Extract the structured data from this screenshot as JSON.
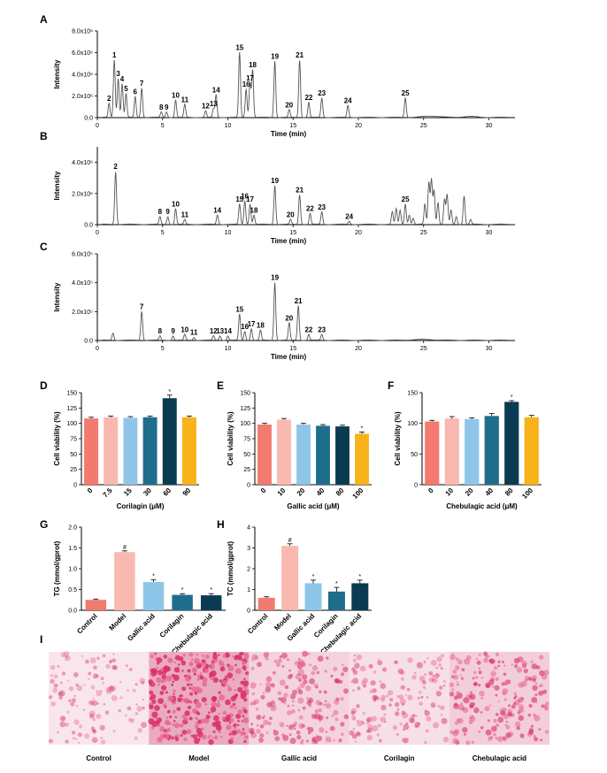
{
  "figure": {
    "panel_letters": [
      "A",
      "B",
      "C",
      "D",
      "E",
      "F",
      "G",
      "H",
      "I"
    ],
    "colors": {
      "salmon": "#F27A6E",
      "pink": "#F9B9B0",
      "lightblue": "#8EC6E9",
      "teal": "#1F6D8C",
      "navy": "#0B3B52",
      "gold": "#F7B319",
      "trace": "#555555"
    },
    "stain": {
      "labels": [
        "Control",
        "Model",
        "Gallic acid",
        "Corilagin",
        "Chebulagic acid"
      ],
      "densities": [
        0.12,
        0.92,
        0.38,
        0.22,
        0.45
      ]
    }
  },
  "chart_data": [
    {
      "id": "A",
      "type": "line",
      "xlabel": "Time (min)",
      "ylabel": "Intensity",
      "xlim": [
        0,
        32
      ],
      "ylim": [
        0,
        8000000.0
      ],
      "xticks": [
        "0",
        "5",
        "10",
        "15",
        "20",
        "25",
        "30"
      ],
      "yticks": [
        "0.0",
        "2.0x10⁶",
        "4.0x10⁶",
        "6.0x10⁶",
        "8.0x10⁶"
      ],
      "peaks": [
        {
          "t": 1.3,
          "h": 5.3,
          "label": "1"
        },
        {
          "t": 0.9,
          "h": 1.3,
          "label": "2"
        },
        {
          "t": 1.6,
          "h": 3.6,
          "label": "3"
        },
        {
          "t": 1.9,
          "h": 3.1,
          "label": "4"
        },
        {
          "t": 2.2,
          "h": 2.2,
          "label": "5"
        },
        {
          "t": 2.9,
          "h": 1.9,
          "label": "6"
        },
        {
          "t": 3.4,
          "h": 2.7,
          "label": "7"
        },
        {
          "t": 4.9,
          "h": 0.5,
          "label": "8"
        },
        {
          "t": 5.3,
          "h": 0.5,
          "label": "9"
        },
        {
          "t": 6.0,
          "h": 1.6,
          "label": "10"
        },
        {
          "t": 6.7,
          "h": 1.2,
          "label": "11"
        },
        {
          "t": 8.3,
          "h": 0.6,
          "label": "12"
        },
        {
          "t": 8.9,
          "h": 0.8,
          "label": "13"
        },
        {
          "t": 9.1,
          "h": 2.1,
          "label": "14"
        },
        {
          "t": 10.9,
          "h": 6.0,
          "label": "15"
        },
        {
          "t": 11.4,
          "h": 2.6,
          "label": "16"
        },
        {
          "t": 11.7,
          "h": 3.2,
          "label": "17"
        },
        {
          "t": 11.9,
          "h": 4.4,
          "label": "18"
        },
        {
          "t": 13.6,
          "h": 5.2,
          "label": "19"
        },
        {
          "t": 14.7,
          "h": 0.7,
          "label": "20"
        },
        {
          "t": 15.5,
          "h": 5.3,
          "label": "21"
        },
        {
          "t": 16.2,
          "h": 1.4,
          "label": "22"
        },
        {
          "t": 17.2,
          "h": 1.8,
          "label": "23"
        },
        {
          "t": 19.2,
          "h": 1.1,
          "label": "24"
        },
        {
          "t": 23.6,
          "h": 1.8,
          "label": "25"
        }
      ]
    },
    {
      "id": "B",
      "type": "line",
      "xlabel": "Time (min)",
      "ylabel": "Intensity",
      "xlim": [
        0,
        32
      ],
      "ylim": [
        0,
        5000000.0
      ],
      "xticks": [
        "0",
        "5",
        "10",
        "15",
        "20",
        "25",
        "30"
      ],
      "yticks": [
        "0.0",
        "2.0x10⁶",
        "4.0x10⁶"
      ],
      "peaks": [
        {
          "t": 1.4,
          "h": 3.4,
          "label": "2"
        },
        {
          "t": 4.8,
          "h": 0.5,
          "label": "8"
        },
        {
          "t": 5.4,
          "h": 0.5,
          "label": "9"
        },
        {
          "t": 6.0,
          "h": 1.0,
          "label": "10"
        },
        {
          "t": 6.7,
          "h": 0.3,
          "label": "11"
        },
        {
          "t": 9.2,
          "h": 0.6,
          "label": "14"
        },
        {
          "t": 10.9,
          "h": 1.3,
          "label": "15"
        },
        {
          "t": 11.3,
          "h": 1.5,
          "label": "16"
        },
        {
          "t": 11.7,
          "h": 1.3,
          "label": "17"
        },
        {
          "t": 12.0,
          "h": 0.6,
          "label": "18"
        },
        {
          "t": 13.6,
          "h": 2.5,
          "label": "19"
        },
        {
          "t": 14.8,
          "h": 0.3,
          "label": "20"
        },
        {
          "t": 15.5,
          "h": 1.9,
          "label": "21"
        },
        {
          "t": 16.3,
          "h": 0.7,
          "label": "22"
        },
        {
          "t": 17.2,
          "h": 0.8,
          "label": "23"
        },
        {
          "t": 19.3,
          "h": 0.2,
          "label": "24"
        },
        {
          "t": 23.6,
          "h": 1.3,
          "label": "25"
        }
      ]
    },
    {
      "id": "C",
      "type": "line",
      "xlabel": "Time (min)",
      "ylabel": "Intensity",
      "xlim": [
        0,
        32
      ],
      "ylim": [
        0,
        600000.0
      ],
      "xticks": [
        "0",
        "5",
        "10",
        "15",
        "20",
        "25",
        "30"
      ],
      "yticks": [
        "0.0",
        "2.0x10⁵",
        "4.0x10⁵",
        "6.0x10⁵"
      ],
      "peaks": [
        {
          "t": 3.4,
          "h": 2.0,
          "label": "7"
        },
        {
          "t": 4.8,
          "h": 0.3,
          "label": "8"
        },
        {
          "t": 5.8,
          "h": 0.3,
          "label": "9"
        },
        {
          "t": 6.7,
          "h": 0.4,
          "label": "10"
        },
        {
          "t": 7.4,
          "h": 0.2,
          "label": "11"
        },
        {
          "t": 8.9,
          "h": 0.3,
          "label": "12"
        },
        {
          "t": 9.4,
          "h": 0.3,
          "label": "13"
        },
        {
          "t": 10.0,
          "h": 0.3,
          "label": "14"
        },
        {
          "t": 10.9,
          "h": 1.8,
          "label": "15"
        },
        {
          "t": 11.3,
          "h": 0.6,
          "label": "16"
        },
        {
          "t": 11.8,
          "h": 0.8,
          "label": "17"
        },
        {
          "t": 12.5,
          "h": 0.7,
          "label": "18"
        },
        {
          "t": 13.6,
          "h": 4.0,
          "label": "19"
        },
        {
          "t": 14.7,
          "h": 1.2,
          "label": "20"
        },
        {
          "t": 15.4,
          "h": 2.4,
          "label": "21"
        },
        {
          "t": 16.2,
          "h": 0.4,
          "label": "22"
        },
        {
          "t": 17.2,
          "h": 0.4,
          "label": "23"
        }
      ]
    },
    {
      "id": "D",
      "type": "bar",
      "xlabel": "Corilagin (μM)",
      "ylabel": "Cell viability (%)",
      "ylim": [
        0,
        150
      ],
      "yticks": [
        "0",
        "25",
        "50",
        "75",
        "100",
        "125",
        "150"
      ],
      "categories": [
        "0",
        "7.5",
        "15",
        "30",
        "60",
        "90"
      ],
      "values": [
        108,
        110,
        109,
        110,
        141,
        110
      ],
      "errors": [
        2,
        2,
        2,
        2,
        5,
        2
      ],
      "signif": [
        "",
        "",
        "",
        "",
        "*",
        ""
      ],
      "colors": [
        "#F27A6E",
        "#F9B9B0",
        "#8EC6E9",
        "#1F6D8C",
        "#0B3B52",
        "#F7B319"
      ]
    },
    {
      "id": "E",
      "type": "bar",
      "xlabel": "Gallic acid (μM)",
      "ylabel": "Cell viability (%)",
      "ylim": [
        0,
        150
      ],
      "yticks": [
        "0",
        "25",
        "50",
        "75",
        "100",
        "125",
        "150"
      ],
      "categories": [
        "0",
        "10",
        "20",
        "40",
        "80",
        "100"
      ],
      "values": [
        98,
        106,
        98,
        96,
        95,
        83
      ],
      "errors": [
        2,
        2,
        2,
        2,
        2,
        3
      ],
      "signif": [
        "",
        "",
        "",
        "",
        "",
        "*"
      ],
      "colors": [
        "#F27A6E",
        "#F9B9B0",
        "#8EC6E9",
        "#1F6D8C",
        "#0B3B52",
        "#F7B319"
      ]
    },
    {
      "id": "F",
      "type": "bar",
      "xlabel": "Chebulagic acid (μM)",
      "ylabel": "Cell viability (%)",
      "ylim": [
        0,
        150
      ],
      "yticks": [
        "0",
        "50",
        "100",
        "150"
      ],
      "categories": [
        "0",
        "10",
        "20",
        "40",
        "80",
        "100"
      ],
      "values": [
        103,
        108,
        107,
        112,
        135,
        110
      ],
      "errors": [
        2,
        3,
        2,
        4,
        2,
        3
      ],
      "signif": [
        "",
        "",
        "",
        "",
        "*",
        ""
      ],
      "colors": [
        "#F27A6E",
        "#F9B9B0",
        "#8EC6E9",
        "#1F6D8C",
        "#0B3B52",
        "#F7B319"
      ]
    },
    {
      "id": "G",
      "type": "bar",
      "ylabel": "TG (mmol/gprot)",
      "xlabel": "",
      "ylim": [
        0,
        2.0
      ],
      "yticks": [
        "0.0",
        "0.5",
        "1.0",
        "1.5",
        "2.0"
      ],
      "categories": [
        "Control",
        "Model",
        "Gallic acid",
        "Corilagin",
        "Chebulagic acid"
      ],
      "values": [
        0.25,
        1.4,
        0.68,
        0.37,
        0.36
      ],
      "errors": [
        0.02,
        0.03,
        0.05,
        0.03,
        0.04
      ],
      "signif": [
        "",
        "#",
        "*",
        "*",
        "*"
      ],
      "colors": [
        "#F27A6E",
        "#F9B9B0",
        "#8EC6E9",
        "#1F6D8C",
        "#0B3B52"
      ]
    },
    {
      "id": "H",
      "type": "bar",
      "ylabel": "TC (mmol/gprot)",
      "xlabel": "",
      "ylim": [
        0,
        4
      ],
      "yticks": [
        "0",
        "1",
        "2",
        "3",
        "4"
      ],
      "categories": [
        "Control",
        "Model",
        "Gallic acid",
        "Corilagin",
        "Chebulagic acid"
      ],
      "values": [
        0.6,
        3.1,
        1.3,
        0.9,
        1.3
      ],
      "errors": [
        0.05,
        0.1,
        0.15,
        0.2,
        0.15
      ],
      "signif": [
        "",
        "#",
        "*",
        "*",
        "*"
      ],
      "colors": [
        "#F27A6E",
        "#F9B9B0",
        "#8EC6E9",
        "#1F6D8C",
        "#0B3B52"
      ]
    }
  ]
}
